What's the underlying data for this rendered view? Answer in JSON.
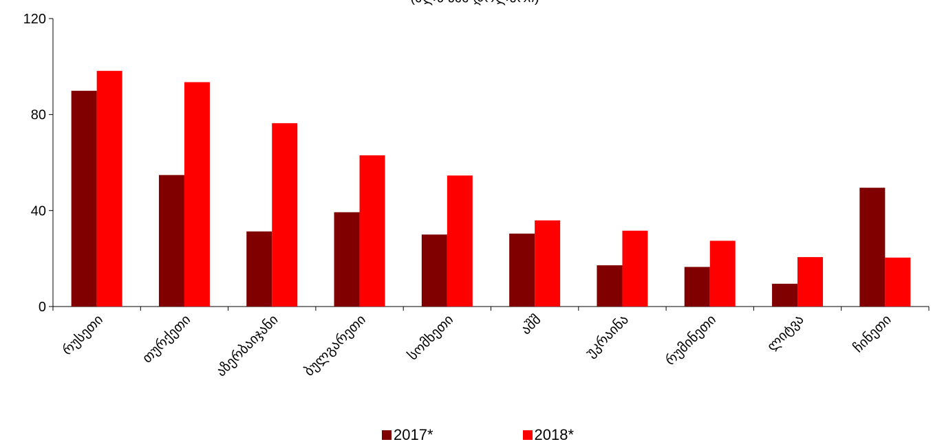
{
  "chart_data": {
    "type": "bar",
    "title": "(მლნ აშშ დოლარი)",
    "categories": [
      "რუსეთი",
      "თურქეთი",
      "აზერბაიჯანი",
      "ბულგარეთი",
      "სომხეთი",
      "აშშ",
      "უკრაინა",
      "რუმინეთი",
      "ლიტვა",
      "ჩინეთი"
    ],
    "series": [
      {
        "name": "2017*",
        "color": "#800000",
        "values": [
          89.9,
          54.8,
          31.3,
          39.3,
          30.0,
          30.4,
          17.2,
          16.5,
          9.5,
          49.5
        ]
      },
      {
        "name": "2018*",
        "color": "#FF0000",
        "values": [
          98.2,
          93.5,
          76.4,
          63.0,
          54.6,
          35.9,
          31.6,
          27.4,
          20.6,
          20.4
        ]
      }
    ],
    "ylim": [
      0,
      120
    ],
    "yticks": [
      0,
      40,
      80,
      120
    ],
    "grid": false,
    "legend": "bottom"
  }
}
